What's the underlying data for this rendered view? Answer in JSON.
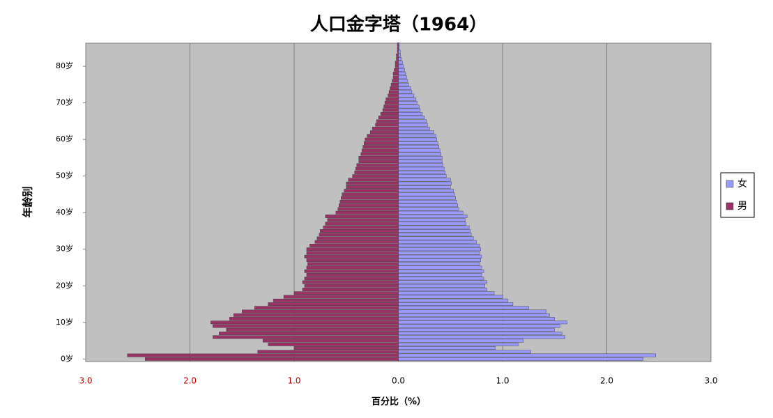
{
  "chart_data": {
    "type": "population-pyramid",
    "title": "人口金字塔（1964）",
    "x_label": "百分比（%）",
    "y_label": "年龄别",
    "y": [
      0,
      1,
      2,
      3,
      4,
      5,
      6,
      7,
      8,
      9,
      10,
      11,
      12,
      13,
      14,
      15,
      16,
      17,
      18,
      19,
      20,
      21,
      22,
      23,
      24,
      25,
      26,
      27,
      28,
      29,
      30,
      31,
      32,
      33,
      34,
      35,
      36,
      37,
      38,
      39,
      40,
      41,
      42,
      43,
      44,
      45,
      46,
      47,
      48,
      49,
      50,
      51,
      52,
      53,
      54,
      55,
      56,
      57,
      58,
      59,
      60,
      61,
      62,
      63,
      64,
      65,
      66,
      67,
      68,
      69,
      70,
      71,
      72,
      73,
      74,
      75,
      76,
      77,
      78,
      79,
      80,
      81,
      82,
      83,
      84,
      85,
      86
    ],
    "series": [
      {
        "name": "女",
        "color": "#9999ff",
        "values": [
          2.35,
          2.47,
          1.27,
          0.93,
          1.15,
          1.2,
          1.6,
          1.57,
          1.5,
          1.55,
          1.62,
          1.5,
          1.45,
          1.42,
          1.25,
          1.1,
          1.05,
          1.0,
          0.92,
          0.85,
          0.83,
          0.85,
          0.82,
          0.8,
          0.82,
          0.8,
          0.78,
          0.79,
          0.8,
          0.78,
          0.79,
          0.78,
          0.75,
          0.72,
          0.7,
          0.69,
          0.68,
          0.65,
          0.64,
          0.66,
          0.62,
          0.58,
          0.57,
          0.56,
          0.55,
          0.54,
          0.53,
          0.5,
          0.51,
          0.5,
          0.46,
          0.45,
          0.44,
          0.43,
          0.42,
          0.42,
          0.41,
          0.4,
          0.39,
          0.38,
          0.37,
          0.36,
          0.34,
          0.3,
          0.28,
          0.27,
          0.25,
          0.23,
          0.21,
          0.2,
          0.18,
          0.17,
          0.15,
          0.13,
          0.12,
          0.1,
          0.09,
          0.08,
          0.07,
          0.06,
          0.05,
          0.04,
          0.03,
          0.02,
          0.02,
          0.01,
          0.01
        ]
      },
      {
        "name": "男",
        "color": "#993366",
        "values": [
          -2.43,
          -2.6,
          -1.35,
          -1.0,
          -1.25,
          -1.3,
          -1.78,
          -1.72,
          -1.65,
          -1.78,
          -1.8,
          -1.62,
          -1.58,
          -1.5,
          -1.38,
          -1.25,
          -1.2,
          -1.1,
          -1.0,
          -0.92,
          -0.9,
          -0.92,
          -0.9,
          -0.88,
          -0.9,
          -0.88,
          -0.87,
          -0.88,
          -0.9,
          -0.88,
          -0.88,
          -0.85,
          -0.8,
          -0.78,
          -0.76,
          -0.75,
          -0.72,
          -0.7,
          -0.68,
          -0.7,
          -0.6,
          -0.58,
          -0.57,
          -0.56,
          -0.55,
          -0.54,
          -0.52,
          -0.5,
          -0.5,
          -0.48,
          -0.44,
          -0.42,
          -0.41,
          -0.4,
          -0.38,
          -0.38,
          -0.36,
          -0.35,
          -0.34,
          -0.33,
          -0.32,
          -0.3,
          -0.27,
          -0.25,
          -0.22,
          -0.21,
          -0.19,
          -0.17,
          -0.15,
          -0.14,
          -0.13,
          -0.12,
          -0.1,
          -0.09,
          -0.08,
          -0.07,
          -0.06,
          -0.05,
          -0.05,
          -0.04,
          -0.03,
          -0.03,
          -0.02,
          -0.02,
          -0.01,
          -0.01,
          -0.01
        ]
      }
    ],
    "xlim": [
      -3,
      3
    ],
    "xticks": [
      {
        "value": -3,
        "label": "3.0"
      },
      {
        "value": -2,
        "label": "2.0"
      },
      {
        "value": -1,
        "label": "1.0"
      },
      {
        "value": 0,
        "label": "0.0"
      },
      {
        "value": 1,
        "label": "1.0"
      },
      {
        "value": 2,
        "label": "2.0"
      },
      {
        "value": 3,
        "label": "3.0"
      }
    ],
    "ylim": [
      -0.7,
      86.3
    ],
    "yticks": [
      {
        "value": 0,
        "label": "0岁"
      },
      {
        "value": 10,
        "label": "10岁"
      },
      {
        "value": 20,
        "label": "20岁"
      },
      {
        "value": 30,
        "label": "30岁"
      },
      {
        "value": 40,
        "label": "40岁"
      },
      {
        "value": 50,
        "label": "50岁"
      },
      {
        "value": 60,
        "label": "60岁"
      },
      {
        "value": 70,
        "label": "70岁"
      },
      {
        "value": 80,
        "label": "80岁"
      }
    ],
    "grid": true,
    "legend": "right"
  }
}
